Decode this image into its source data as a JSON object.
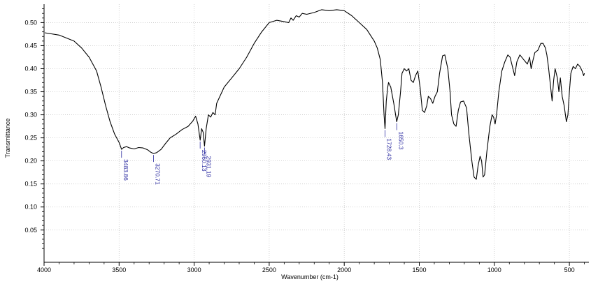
{
  "chart_data": {
    "type": "line",
    "xlabel": "Wavenumber (cm-1)",
    "ylabel": "Transmittance",
    "xlim": [
      4000,
      370
    ],
    "ylim": [
      -0.02,
      0.54
    ],
    "x_reversed": true,
    "grid": true,
    "x_ticks": [
      {
        "value": 4000,
        "label": "4000"
      },
      {
        "value": 3500,
        "label": "3500"
      },
      {
        "value": 3000,
        "label": "3000"
      },
      {
        "value": 2500,
        "label": "2500"
      },
      {
        "value": 2000,
        "label": "2000"
      },
      {
        "value": 1500,
        "label": "1500"
      },
      {
        "value": 1000,
        "label": "1000"
      },
      {
        "value": 500,
        "label": "500"
      }
    ],
    "y_ticks": [
      {
        "value": 0.05,
        "label": "0.05"
      },
      {
        "value": 0.1,
        "label": "0.10"
      },
      {
        "value": 0.15,
        "label": "0.15"
      },
      {
        "value": 0.2,
        "label": "0.20"
      },
      {
        "value": 0.25,
        "label": "0.25"
      },
      {
        "value": 0.3,
        "label": "0.30"
      },
      {
        "value": 0.35,
        "label": "0.35"
      },
      {
        "value": 0.4,
        "label": "0.40"
      },
      {
        "value": 0.45,
        "label": "0.45"
      },
      {
        "value": 0.5,
        "label": "0.50"
      }
    ],
    "series": [
      {
        "color": "#000000",
        "points": [
          [
            3995,
            0.478
          ],
          [
            3900,
            0.473
          ],
          [
            3800,
            0.46
          ],
          [
            3750,
            0.445
          ],
          [
            3700,
            0.425
          ],
          [
            3650,
            0.395
          ],
          [
            3620,
            0.36
          ],
          [
            3590,
            0.32
          ],
          [
            3560,
            0.285
          ],
          [
            3530,
            0.258
          ],
          [
            3500,
            0.24
          ],
          [
            3483.86,
            0.225
          ],
          [
            3470,
            0.229
          ],
          [
            3450,
            0.231
          ],
          [
            3430,
            0.228
          ],
          [
            3400,
            0.226
          ],
          [
            3370,
            0.229
          ],
          [
            3340,
            0.228
          ],
          [
            3310,
            0.224
          ],
          [
            3290,
            0.219
          ],
          [
            3270.71,
            0.216
          ],
          [
            3250,
            0.218
          ],
          [
            3220,
            0.225
          ],
          [
            3190,
            0.238
          ],
          [
            3160,
            0.25
          ],
          [
            3120,
            0.258
          ],
          [
            3080,
            0.268
          ],
          [
            3040,
            0.275
          ],
          [
            3010,
            0.286
          ],
          [
            2990,
            0.297
          ],
          [
            2975,
            0.28
          ],
          [
            2960.13,
            0.245
          ],
          [
            2950,
            0.27
          ],
          [
            2940,
            0.262
          ],
          [
            2931.19,
            0.232
          ],
          [
            2920,
            0.27
          ],
          [
            2905,
            0.3
          ],
          [
            2890,
            0.295
          ],
          [
            2875,
            0.305
          ],
          [
            2860,
            0.3
          ],
          [
            2850,
            0.325
          ],
          [
            2800,
            0.36
          ],
          [
            2750,
            0.38
          ],
          [
            2700,
            0.4
          ],
          [
            2650,
            0.425
          ],
          [
            2600,
            0.455
          ],
          [
            2550,
            0.48
          ],
          [
            2500,
            0.5
          ],
          [
            2450,
            0.505
          ],
          [
            2400,
            0.502
          ],
          [
            2370,
            0.5
          ],
          [
            2355,
            0.51
          ],
          [
            2340,
            0.505
          ],
          [
            2320,
            0.515
          ],
          [
            2300,
            0.512
          ],
          [
            2280,
            0.52
          ],
          [
            2250,
            0.518
          ],
          [
            2200,
            0.522
          ],
          [
            2150,
            0.528
          ],
          [
            2100,
            0.526
          ],
          [
            2050,
            0.528
          ],
          [
            2000,
            0.526
          ],
          [
            1950,
            0.515
          ],
          [
            1900,
            0.5
          ],
          [
            1850,
            0.485
          ],
          [
            1800,
            0.46
          ],
          [
            1780,
            0.445
          ],
          [
            1760,
            0.42
          ],
          [
            1745,
            0.37
          ],
          [
            1735,
            0.3
          ],
          [
            1728.43,
            0.27
          ],
          [
            1720,
            0.33
          ],
          [
            1710,
            0.36
          ],
          [
            1705,
            0.37
          ],
          [
            1690,
            0.36
          ],
          [
            1670,
            0.325
          ],
          [
            1650.3,
            0.285
          ],
          [
            1640,
            0.3
          ],
          [
            1625,
            0.35
          ],
          [
            1615,
            0.39
          ],
          [
            1600,
            0.4
          ],
          [
            1585,
            0.395
          ],
          [
            1570,
            0.4
          ],
          [
            1555,
            0.375
          ],
          [
            1540,
            0.37
          ],
          [
            1525,
            0.385
          ],
          [
            1510,
            0.395
          ],
          [
            1495,
            0.36
          ],
          [
            1480,
            0.31
          ],
          [
            1465,
            0.305
          ],
          [
            1450,
            0.32
          ],
          [
            1440,
            0.34
          ],
          [
            1425,
            0.335
          ],
          [
            1410,
            0.325
          ],
          [
            1395,
            0.34
          ],
          [
            1380,
            0.35
          ],
          [
            1365,
            0.39
          ],
          [
            1345,
            0.428
          ],
          [
            1330,
            0.43
          ],
          [
            1310,
            0.4
          ],
          [
            1295,
            0.35
          ],
          [
            1285,
            0.3
          ],
          [
            1270,
            0.28
          ],
          [
            1255,
            0.275
          ],
          [
            1240,
            0.31
          ],
          [
            1225,
            0.328
          ],
          [
            1205,
            0.33
          ],
          [
            1185,
            0.315
          ],
          [
            1170,
            0.26
          ],
          [
            1150,
            0.2
          ],
          [
            1135,
            0.165
          ],
          [
            1120,
            0.16
          ],
          [
            1108,
            0.19
          ],
          [
            1095,
            0.21
          ],
          [
            1085,
            0.2
          ],
          [
            1075,
            0.165
          ],
          [
            1065,
            0.17
          ],
          [
            1050,
            0.22
          ],
          [
            1030,
            0.275
          ],
          [
            1015,
            0.3
          ],
          [
            1005,
            0.295
          ],
          [
            995,
            0.28
          ],
          [
            985,
            0.3
          ],
          [
            970,
            0.35
          ],
          [
            950,
            0.395
          ],
          [
            930,
            0.415
          ],
          [
            910,
            0.43
          ],
          [
            895,
            0.425
          ],
          [
            880,
            0.405
          ],
          [
            865,
            0.385
          ],
          [
            850,
            0.415
          ],
          [
            830,
            0.43
          ],
          [
            805,
            0.42
          ],
          [
            780,
            0.41
          ],
          [
            765,
            0.425
          ],
          [
            755,
            0.4
          ],
          [
            745,
            0.415
          ],
          [
            730,
            0.435
          ],
          [
            710,
            0.44
          ],
          [
            690,
            0.455
          ],
          [
            675,
            0.455
          ],
          [
            660,
            0.445
          ],
          [
            650,
            0.43
          ],
          [
            640,
            0.405
          ],
          [
            625,
            0.36
          ],
          [
            615,
            0.33
          ],
          [
            605,
            0.375
          ],
          [
            595,
            0.4
          ],
          [
            580,
            0.38
          ],
          [
            570,
            0.35
          ],
          [
            560,
            0.38
          ],
          [
            548,
            0.34
          ],
          [
            535,
            0.32
          ],
          [
            520,
            0.285
          ],
          [
            510,
            0.3
          ],
          [
            500,
            0.35
          ],
          [
            490,
            0.39
          ],
          [
            475,
            0.405
          ],
          [
            460,
            0.4
          ],
          [
            445,
            0.41
          ],
          [
            430,
            0.405
          ],
          [
            415,
            0.395
          ],
          [
            405,
            0.385
          ],
          [
            400,
            0.39
          ]
        ]
      }
    ],
    "annotations": [
      {
        "x": 3483.86,
        "y": 0.225,
        "label": "3483.86"
      },
      {
        "x": 3270.71,
        "y": 0.216,
        "label": "3270.71"
      },
      {
        "x": 2960.13,
        "y": 0.245,
        "label": "2960.13"
      },
      {
        "x": 2931.19,
        "y": 0.232,
        "label": "2931.19"
      },
      {
        "x": 1728.43,
        "y": 0.27,
        "label": "1728.43"
      },
      {
        "x": 1650.3,
        "y": 0.285,
        "label": "1650.3"
      }
    ],
    "annotation_color": "#2a2aa0"
  }
}
